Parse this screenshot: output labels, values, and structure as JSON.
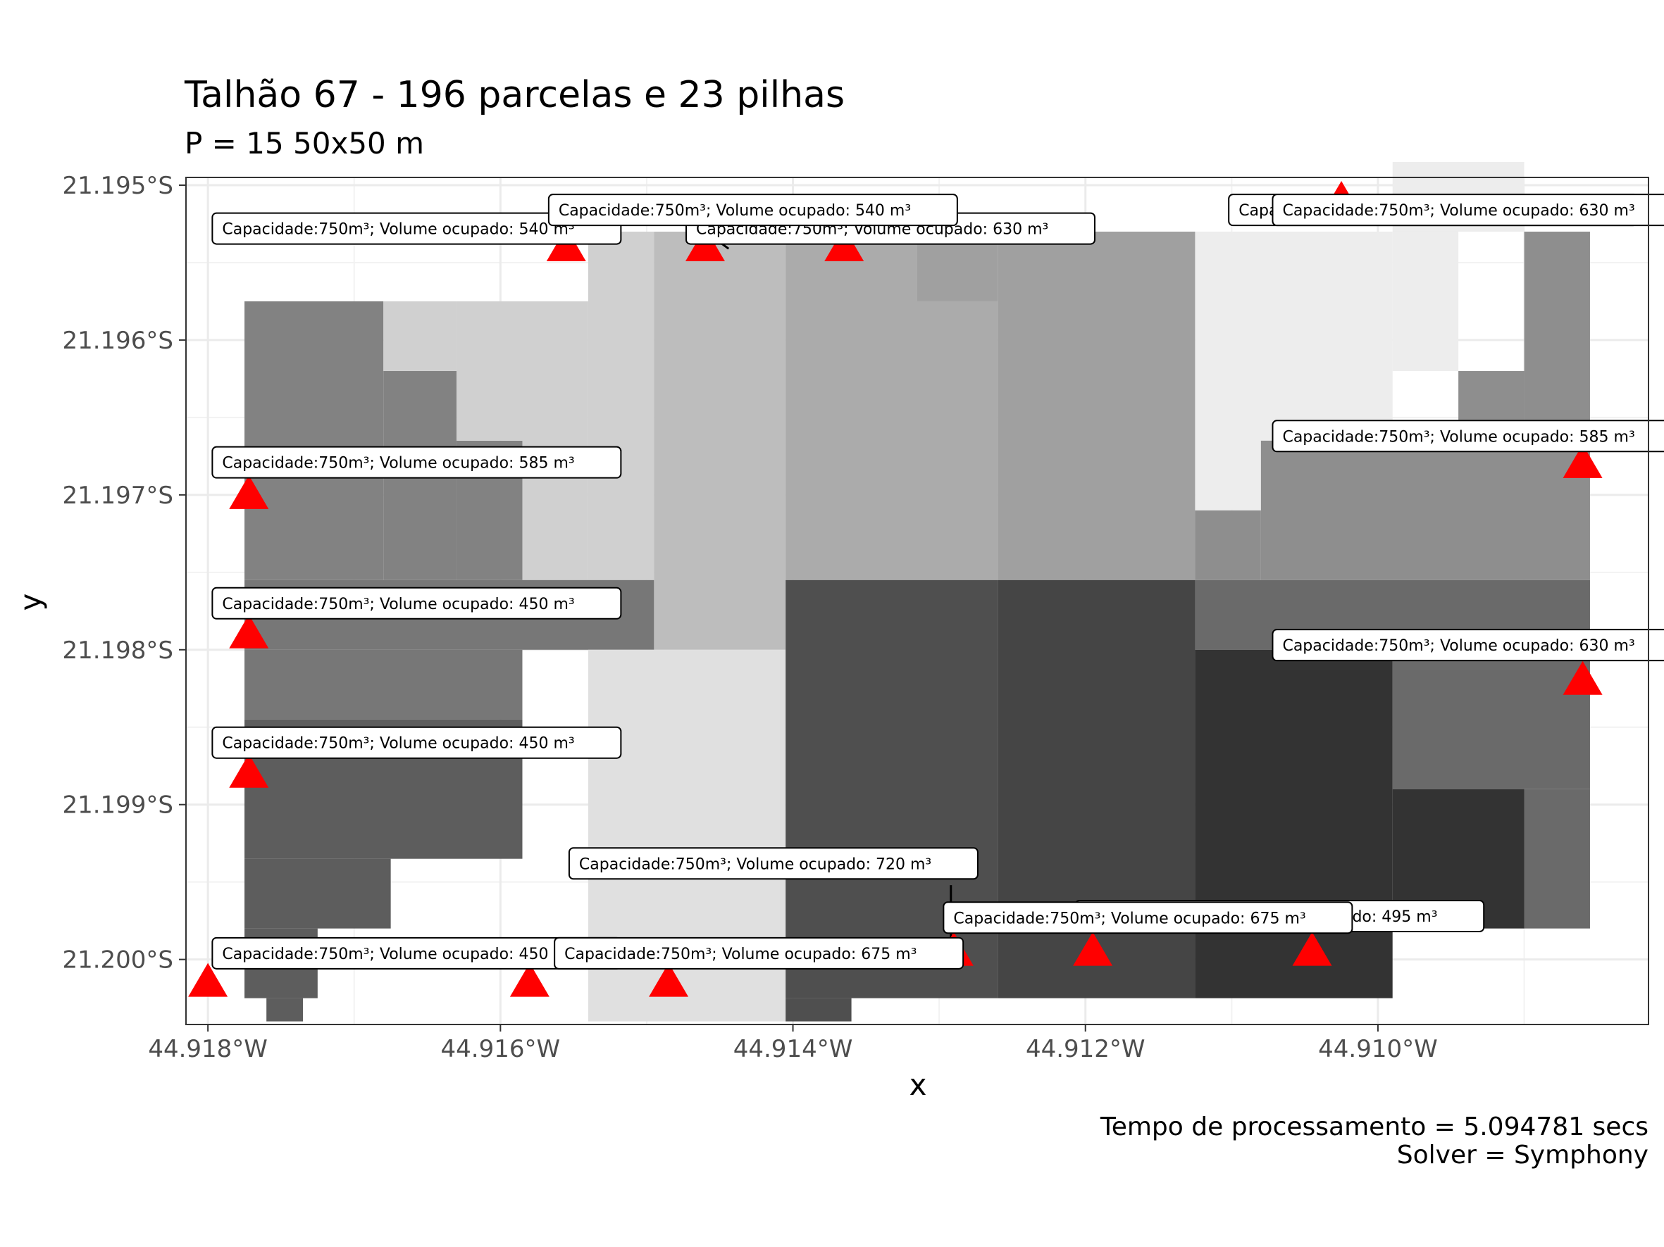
{
  "chart_data": {
    "type": "heatmap",
    "title": "Talhão 67 - 196 parcelas e 23 pilhas",
    "subtitle": "P = 15  50x50 m",
    "xlabel": "x",
    "ylabel": "y",
    "caption": [
      "Tempo de processamento = 5.094781 secs",
      "Solver = Symphony"
    ],
    "xlim": [
      -44.91815,
      -44.90815
    ],
    "ylim": [
      -21.20042,
      -21.19495
    ],
    "x_ticks": [
      {
        "value": -44.918,
        "label": "44.918°W"
      },
      {
        "value": -44.916,
        "label": "44.916°W"
      },
      {
        "value": -44.914,
        "label": "44.914°W"
      },
      {
        "value": -44.912,
        "label": "44.912°W"
      },
      {
        "value": -44.91,
        "label": "44.910°W"
      }
    ],
    "y_ticks": [
      {
        "value": -21.195,
        "label": "21.195°S"
      },
      {
        "value": -21.196,
        "label": "21.196°S"
      },
      {
        "value": -21.197,
        "label": "21.197°S"
      },
      {
        "value": -21.198,
        "label": "21.198°S"
      },
      {
        "value": -21.199,
        "label": "21.199°S"
      },
      {
        "value": -21.2,
        "label": "21.200°S"
      }
    ],
    "grid": true,
    "zones": [
      {
        "fill": "#828282",
        "cells": [
          [
            -44.91775,
            -21.19575,
            -44.9168,
            -21.19755
          ],
          [
            -44.9168,
            -21.1962,
            -44.9163,
            -21.19755
          ],
          [
            -44.9163,
            -21.19665,
            -44.91585,
            -21.19755
          ]
        ]
      },
      {
        "fill": "#d0d0d0",
        "cells": [
          [
            -44.9168,
            -21.19575,
            -44.9163,
            -21.1962
          ],
          [
            -44.9163,
            -21.19575,
            -44.91585,
            -21.19665
          ],
          [
            -44.91585,
            -21.19575,
            -44.9154,
            -21.19755
          ],
          [
            -44.9154,
            -21.1953,
            -44.91495,
            -21.19755
          ]
        ]
      },
      {
        "fill": "#bdbdbd",
        "cells": [
          [
            -44.91495,
            -21.1953,
            -44.91405,
            -21.198
          ]
        ]
      },
      {
        "fill": "#ababab",
        "cells": [
          [
            -44.91405,
            -21.1953,
            -44.91315,
            -21.19755
          ],
          [
            -44.91315,
            -21.19575,
            -44.9126,
            -21.19755
          ]
        ]
      },
      {
        "fill": "#a0a0a0",
        "cells": [
          [
            -44.91315,
            -21.1953,
            -44.9126,
            -21.19575
          ],
          [
            -44.9126,
            -21.1953,
            -44.91125,
            -21.19755
          ]
        ]
      },
      {
        "fill": "#ededed",
        "cells": [
          [
            -44.91125,
            -21.1953,
            -44.9099,
            -21.1971
          ],
          [
            -44.9099,
            -21.19485,
            -44.909,
            -21.1953
          ],
          [
            -44.9099,
            -21.1953,
            -44.90945,
            -21.1962
          ],
          [
            -44.9108,
            -21.1971,
            -44.9099,
            -21.1971
          ]
        ]
      },
      {
        "fill": "#8e8e8e",
        "cells": [
          [
            -44.91125,
            -21.1971,
            -44.9108,
            -21.19755
          ],
          [
            -44.9108,
            -21.19665,
            -44.90855,
            -21.19755
          ],
          [
            -44.90945,
            -21.1962,
            -44.909,
            -21.19665
          ],
          [
            -44.909,
            -21.1953,
            -44.90855,
            -21.19665
          ]
        ]
      },
      {
        "fill": "#777777",
        "cells": [
          [
            -44.91775,
            -21.19755,
            -44.91495,
            -21.198
          ],
          [
            -44.91775,
            -21.198,
            -44.91585,
            -21.19845
          ]
        ]
      },
      {
        "fill": "#5d5d5d",
        "cells": [
          [
            -44.91775,
            -21.19845,
            -44.91585,
            -21.19935
          ],
          [
            -44.91775,
            -21.19935,
            -44.91675,
            -21.1998
          ],
          [
            -44.91775,
            -21.1998,
            -44.91725,
            -21.20025
          ],
          [
            -44.9176,
            -21.20025,
            -44.91735,
            -21.2004
          ]
        ]
      },
      {
        "fill": "#e0e0e0",
        "cells": [
          [
            -44.9154,
            -21.198,
            -44.91405,
            -21.2004
          ]
        ]
      },
      {
        "fill": "#4f4f4f",
        "cells": [
          [
            -44.91405,
            -21.19755,
            -44.9126,
            -21.20025
          ],
          [
            -44.91405,
            -21.20025,
            -44.9136,
            -21.2004
          ]
        ]
      },
      {
        "fill": "#454545",
        "cells": [
          [
            -44.9126,
            -21.19755,
            -44.91125,
            -21.20025
          ]
        ]
      },
      {
        "fill": "#6a6a6a",
        "cells": [
          [
            -44.91125,
            -21.19755,
            -44.90855,
            -21.198
          ],
          [
            -44.9099,
            -21.198,
            -44.90855,
            -21.1989
          ],
          [
            -44.909,
            -21.1989,
            -44.90855,
            -21.1998
          ]
        ]
      },
      {
        "fill": "#333333",
        "cells": [
          [
            -44.91125,
            -21.198,
            -44.9099,
            -21.20025
          ],
          [
            -44.9099,
            -21.1989,
            -44.909,
            -21.1998
          ]
        ]
      }
    ],
    "piles": [
      {
        "x": -44.91772,
        "y": -21.197,
        "capacity": "750m³",
        "volume": 585
      },
      {
        "x": -44.91772,
        "y": -21.1979,
        "capacity": "750m³",
        "volume": 450
      },
      {
        "x": -44.91772,
        "y": -21.1988,
        "capacity": "750m³",
        "volume": 450
      },
      {
        "x": -44.918,
        "y": -21.20015,
        "capacity": "750m³",
        "volume": 450
      },
      {
        "x": -44.9158,
        "y": -21.20015,
        "capacity": "750m³",
        "volume": 450
      },
      {
        "x": -44.91555,
        "y": -21.1954,
        "capacity": "750m³",
        "volume": 540
      },
      {
        "x": -44.9146,
        "y": -21.1954,
        "capacity": "750m³",
        "volume": 540
      },
      {
        "x": -44.91365,
        "y": -21.1954,
        "capacity": "750m³",
        "volume": 630
      },
      {
        "x": -44.91025,
        "y": -21.1951,
        "capacity": "750m³",
        "volume": 630
      },
      {
        "x": -44.91485,
        "y": -21.20015,
        "capacity": "750m³",
        "volume": 675
      },
      {
        "x": -44.9129,
        "y": -21.19995,
        "capacity": "750m³",
        "volume": 720
      },
      {
        "x": -44.91195,
        "y": -21.19995,
        "capacity": "750m³",
        "volume": 675
      },
      {
        "x": -44.91045,
        "y": -21.19995,
        "capacity": "750m³",
        "volume": 495
      },
      {
        "x": -44.9086,
        "y": -21.1968,
        "capacity": "750m³",
        "volume": 585
      },
      {
        "x": -44.9086,
        "y": -21.1982,
        "capacity": "750m³",
        "volume": 630
      }
    ],
    "pile_color": "#ff0000",
    "labels": [
      {
        "text": "Capacidade:750m³; Volume ocupado: 540 m³",
        "bx": -44.91797,
        "by": -21.19528
      },
      {
        "text": "Capacidade:750m³; Volume ocupado: 630 m³",
        "bx": -44.91473,
        "by": -21.19528
      },
      {
        "text": "Capacidade:750m³; Volume ocupado: 630 m³",
        "bx": -44.91102,
        "by": -21.19516
      },
      {
        "text": "Capacidade:750m³; Volume ocupado: 540 m³",
        "bx": -44.91567,
        "by": -21.19516
      },
      {
        "text": "Capacidade:750m³; Volume ocupado: 630 m³",
        "bx": -44.91072,
        "by": -21.19516
      },
      {
        "text": "Capacidade:750m³; Volume ocupado: 585 m³",
        "bx": -44.91797,
        "by": -21.19679
      },
      {
        "text": "Capacidade:750m³; Volume ocupado: 585 m³",
        "bx": -44.91072,
        "by": -21.19662
      },
      {
        "text": "Capacidade:750m³; Volume ocupado: 450 m³",
        "bx": -44.91797,
        "by": -21.1977
      },
      {
        "text": "Capacidade:750m³; Volume ocupado: 630 m³",
        "bx": -44.91072,
        "by": -21.19797
      },
      {
        "text": "Capacidade:750m³; Volume ocupado: 450 m³",
        "bx": -44.91797,
        "by": -21.1986
      },
      {
        "text": "Capacidade:750m³; Volume ocupado: 720 m³",
        "bx": -44.91553,
        "by": -21.19938
      },
      {
        "text": "Capacidade:750m³; Volume ocupado: 495 m³",
        "bx": -44.91207,
        "by": -21.19972
      },
      {
        "text": "Capacidade:750m³; Volume ocupado: 675 m³",
        "bx": -44.91297,
        "by": -21.19973
      },
      {
        "text": "Capacidade:750m³; Volume ocupado: 450 m³",
        "bx": -44.91797,
        "by": -21.19996
      },
      {
        "text": "Capacidade:750m³; Volume ocupado: 675 m³",
        "bx": -44.91563,
        "by": -21.19996
      }
    ],
    "leaders": [
      {
        "x1": -44.9147,
        "y1": -21.19523,
        "x2": -44.91444,
        "y2": -21.19541
      },
      {
        "x1": -44.91292,
        "y1": -21.19952,
        "x2": -44.91292,
        "y2": -21.19994
      }
    ]
  }
}
